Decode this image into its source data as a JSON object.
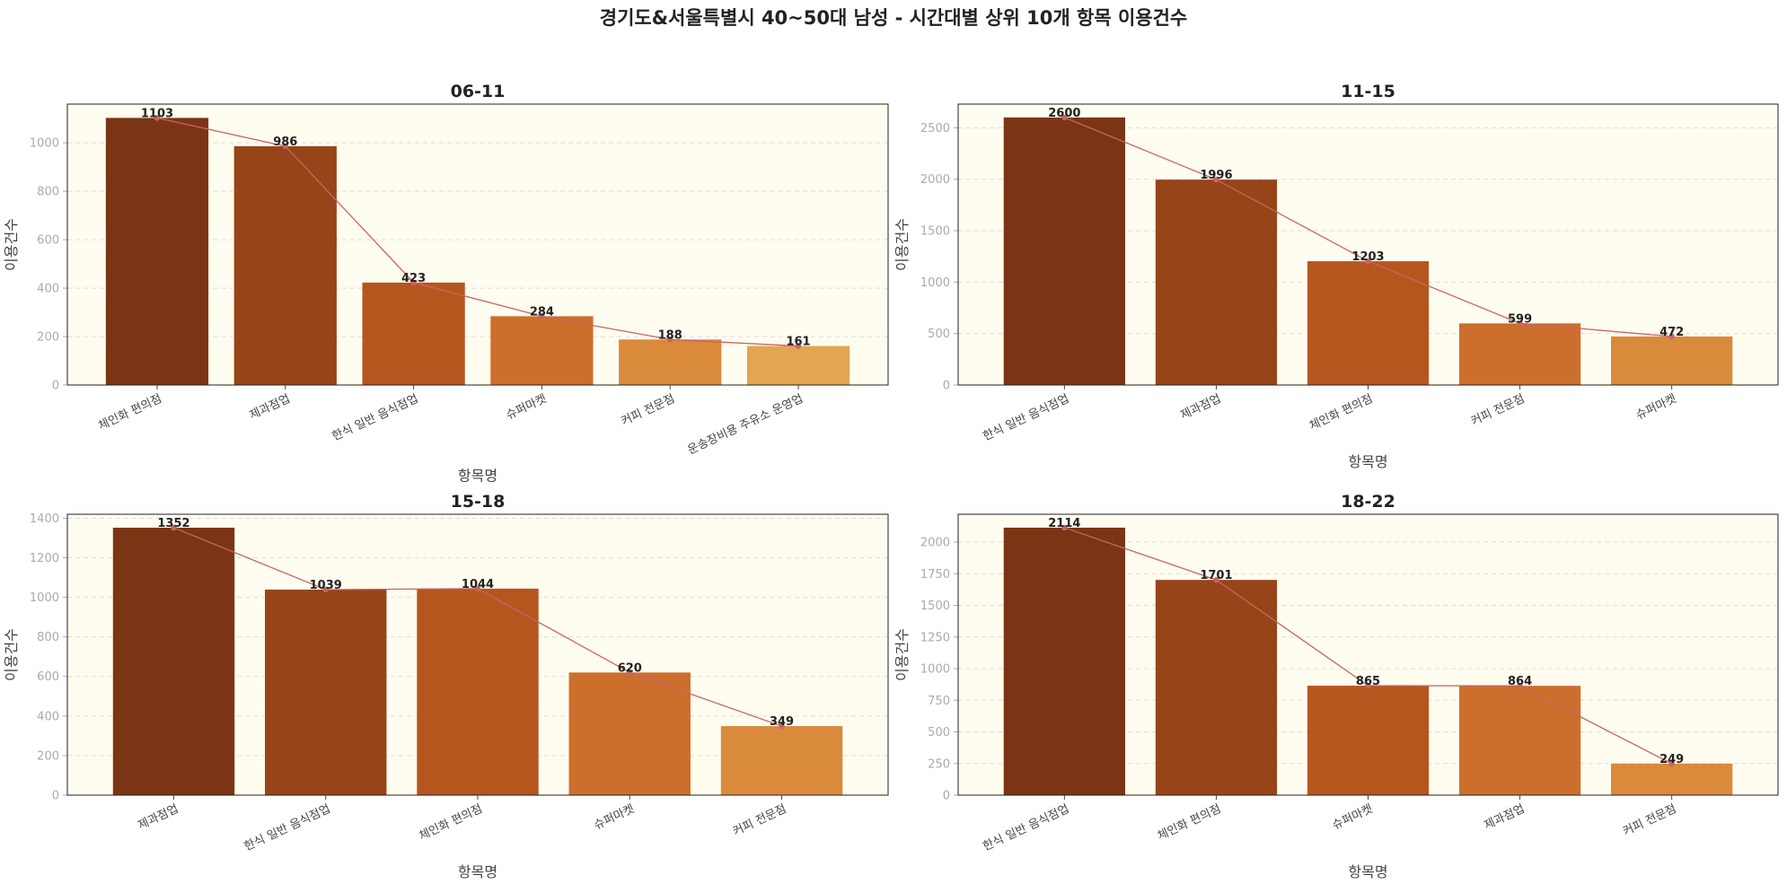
{
  "figure": {
    "title": "경기도&서울특별시 40~50대 남성 - 시간대별 상위 10개 항목 이용건수"
  },
  "style": {
    "plot_background": "#fffcf0",
    "grid_color": "#dddddd",
    "trend_line_color": "#c86464",
    "bar_palette": [
      "#7b3514",
      "#974419",
      "#b6561f",
      "#cc6f2d",
      "#da8a3b",
      "#e3a552"
    ]
  },
  "chart_data": [
    {
      "type": "bar",
      "title": "06-11",
      "xlabel": "항목명",
      "ylabel": "이용건수",
      "categories": [
        "체인화 편의점",
        "제과점업",
        "한식 일반 음식점업",
        "슈퍼마켓",
        "커피 전문점",
        "운송장비용 주유소 운영업"
      ],
      "values": [
        1103,
        986,
        423,
        284,
        188,
        161
      ],
      "ylim": [
        0,
        1160
      ],
      "yticks": [
        0,
        200,
        400,
        600,
        800,
        1000
      ],
      "grid": true,
      "trend_line": true
    },
    {
      "type": "bar",
      "title": "11-15",
      "xlabel": "항목명",
      "ylabel": "이용건수",
      "categories": [
        "한식 일반 음식점업",
        "제과점업",
        "체인화 편의점",
        "커피 전문점",
        "슈퍼마켓"
      ],
      "values": [
        2600,
        1996,
        1203,
        599,
        472
      ],
      "ylim": [
        0,
        2730
      ],
      "yticks": [
        0,
        500,
        1000,
        1500,
        2000,
        2500
      ],
      "grid": true,
      "trend_line": true
    },
    {
      "type": "bar",
      "title": "15-18",
      "xlabel": "항목명",
      "ylabel": "이용건수",
      "categories": [
        "제과점업",
        "한식 일반 음식점업",
        "체인화 편의점",
        "슈퍼마켓",
        "커피 전문점"
      ],
      "values": [
        1352,
        1039,
        1044,
        620,
        349
      ],
      "ylim": [
        0,
        1420
      ],
      "yticks": [
        0,
        200,
        400,
        600,
        800,
        1000,
        1200,
        1400
      ],
      "grid": true,
      "trend_line": true
    },
    {
      "type": "bar",
      "title": "18-22",
      "xlabel": "항목명",
      "ylabel": "이용건수",
      "categories": [
        "한식 일반 음식점업",
        "체인화 편의점",
        "슈퍼마켓",
        "제과점업",
        "커피 전문점"
      ],
      "values": [
        2114,
        1701,
        865,
        864,
        249
      ],
      "ylim": [
        0,
        2220
      ],
      "yticks": [
        0,
        250,
        500,
        750,
        1000,
        1250,
        1500,
        1750,
        2000
      ],
      "grid": true,
      "trend_line": true
    }
  ]
}
